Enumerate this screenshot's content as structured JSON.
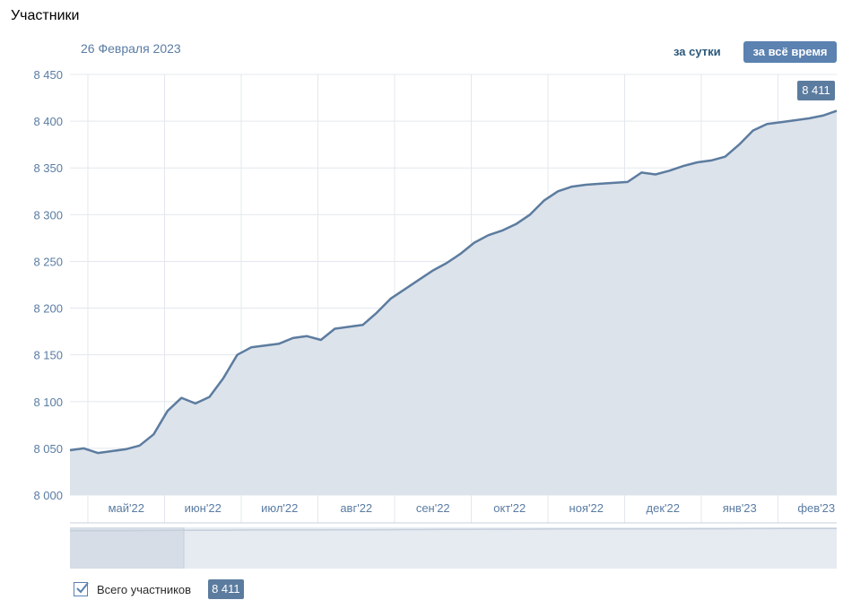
{
  "page": {
    "title": "Участники"
  },
  "chart_header": {
    "date_label": "26 Февраля 2023"
  },
  "period_buttons": {
    "day_label": "за сутки",
    "all_label": "за всё время",
    "active": "all"
  },
  "colors": {
    "line": "#5c7c9f",
    "area_fill": "#dde3eb",
    "grid": "#e3e8ee",
    "tick_text": "#5a7ca3",
    "active_button": "#5b82b0",
    "navigator_selected": "#d6dde6",
    "navigator_bg": "#e6ebf1"
  },
  "legend": {
    "checked": true,
    "label": "Всего участников",
    "value": "8 411"
  },
  "last_value": "8 411",
  "chart_data": {
    "type": "area",
    "ylim": [
      8000,
      8450
    ],
    "yticks": [
      "8 000",
      "8 050",
      "8 100",
      "8 150",
      "8 200",
      "8 250",
      "8 300",
      "8 350",
      "8 400",
      "8 450"
    ],
    "ytick_values": [
      8000,
      8050,
      8100,
      8150,
      8200,
      8250,
      8300,
      8350,
      8400,
      8450
    ],
    "xticks": [
      "май'22",
      "июн'22",
      "июл'22",
      "авг'22",
      "сен'22",
      "окт'22",
      "ноя'22",
      "дек'22",
      "янв'23",
      "фев'23"
    ],
    "grid": true,
    "series": [
      {
        "name": "Всего участников",
        "values": [
          8048,
          8050,
          8045,
          8047,
          8049,
          8053,
          8065,
          8090,
          8104,
          8098,
          8105,
          8125,
          8150,
          8158,
          8160,
          8162,
          8168,
          8170,
          8166,
          8178,
          8180,
          8182,
          8195,
          8210,
          8220,
          8230,
          8240,
          8248,
          8258,
          8270,
          8278,
          8283,
          8290,
          8300,
          8315,
          8325,
          8330,
          8332,
          8333,
          8334,
          8335,
          8345,
          8343,
          8347,
          8352,
          8356,
          8358,
          8362,
          8375,
          8390,
          8397,
          8399,
          8401,
          8403,
          8406,
          8411
        ]
      }
    ]
  }
}
